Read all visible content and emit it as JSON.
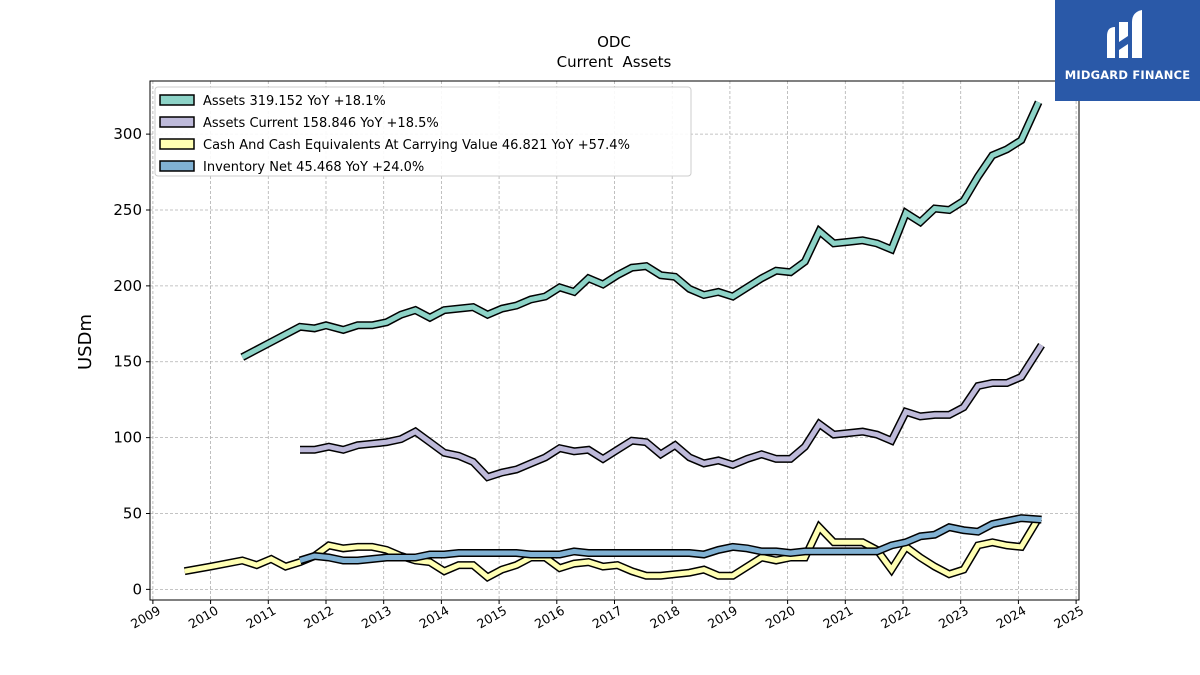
{
  "chart_data": {
    "type": "line",
    "title": "ODC",
    "subtitle": "Current  Assets",
    "ylabel": "USDm",
    "xlabel": "",
    "xlim": [
      2008.95,
      2025.05
    ],
    "ylim": [
      -7,
      335
    ],
    "x_ticks": [
      "2009",
      "2010",
      "2011",
      "2012",
      "2013",
      "2014",
      "2015",
      "2016",
      "2017",
      "2018",
      "2019",
      "2020",
      "2021",
      "2022",
      "2023",
      "2024",
      "2025"
    ],
    "y_ticks": [
      0,
      50,
      100,
      150,
      200,
      250,
      300
    ],
    "grid": true,
    "legend_position": "top-left",
    "series": [
      {
        "name": "Assets  319.152 YoY +18.1%",
        "color": "#8dd3c7",
        "points": [
          [
            2010.55,
            153
          ],
          [
            2011.0,
            162
          ],
          [
            2011.55,
            173
          ],
          [
            2011.8,
            172
          ],
          [
            2012.0,
            174
          ],
          [
            2012.3,
            171
          ],
          [
            2012.55,
            174
          ],
          [
            2012.8,
            174
          ],
          [
            2013.05,
            176
          ],
          [
            2013.3,
            181
          ],
          [
            2013.55,
            184
          ],
          [
            2013.8,
            179
          ],
          [
            2014.05,
            184
          ],
          [
            2014.3,
            185
          ],
          [
            2014.55,
            186
          ],
          [
            2014.8,
            181
          ],
          [
            2015.05,
            185
          ],
          [
            2015.3,
            187
          ],
          [
            2015.55,
            191
          ],
          [
            2015.8,
            193
          ],
          [
            2016.05,
            199
          ],
          [
            2016.3,
            196
          ],
          [
            2016.55,
            205
          ],
          [
            2016.8,
            201
          ],
          [
            2017.05,
            207
          ],
          [
            2017.3,
            212
          ],
          [
            2017.55,
            213
          ],
          [
            2017.8,
            207
          ],
          [
            2018.05,
            206
          ],
          [
            2018.3,
            198
          ],
          [
            2018.55,
            194
          ],
          [
            2018.8,
            196
          ],
          [
            2019.05,
            193
          ],
          [
            2019.3,
            199
          ],
          [
            2019.55,
            205
          ],
          [
            2019.8,
            210
          ],
          [
            2020.05,
            209
          ],
          [
            2020.3,
            216
          ],
          [
            2020.55,
            236
          ],
          [
            2020.8,
            228
          ],
          [
            2021.05,
            229
          ],
          [
            2021.3,
            230
          ],
          [
            2021.55,
            228
          ],
          [
            2021.8,
            224
          ],
          [
            2022.05,
            248
          ],
          [
            2022.3,
            242
          ],
          [
            2022.55,
            251
          ],
          [
            2022.8,
            250
          ],
          [
            2023.05,
            256
          ],
          [
            2023.3,
            272
          ],
          [
            2023.55,
            286
          ],
          [
            2023.8,
            290
          ],
          [
            2024.05,
            296
          ],
          [
            2024.35,
            321
          ]
        ]
      },
      {
        "name": "Assets Current  158.846 YoY +18.5%",
        "color": "#bebada",
        "points": [
          [
            2011.55,
            92
          ],
          [
            2011.8,
            92
          ],
          [
            2012.05,
            94
          ],
          [
            2012.3,
            92
          ],
          [
            2012.55,
            95
          ],
          [
            2012.8,
            96
          ],
          [
            2013.05,
            97
          ],
          [
            2013.3,
            99
          ],
          [
            2013.55,
            104
          ],
          [
            2013.8,
            97
          ],
          [
            2014.05,
            90
          ],
          [
            2014.3,
            88
          ],
          [
            2014.55,
            84
          ],
          [
            2014.8,
            74
          ],
          [
            2015.05,
            77
          ],
          [
            2015.3,
            79
          ],
          [
            2015.55,
            83
          ],
          [
            2015.8,
            87
          ],
          [
            2016.05,
            93
          ],
          [
            2016.3,
            91
          ],
          [
            2016.55,
            92
          ],
          [
            2016.8,
            86
          ],
          [
            2017.05,
            92
          ],
          [
            2017.3,
            98
          ],
          [
            2017.55,
            97
          ],
          [
            2017.8,
            89
          ],
          [
            2018.05,
            95
          ],
          [
            2018.3,
            87
          ],
          [
            2018.55,
            83
          ],
          [
            2018.8,
            85
          ],
          [
            2019.05,
            82
          ],
          [
            2019.3,
            86
          ],
          [
            2019.55,
            89
          ],
          [
            2019.8,
            86
          ],
          [
            2020.05,
            86
          ],
          [
            2020.3,
            94
          ],
          [
            2020.55,
            109
          ],
          [
            2020.8,
            102
          ],
          [
            2021.05,
            103
          ],
          [
            2021.3,
            104
          ],
          [
            2021.55,
            102
          ],
          [
            2021.8,
            98
          ],
          [
            2022.05,
            117
          ],
          [
            2022.3,
            114
          ],
          [
            2022.55,
            115
          ],
          [
            2022.8,
            115
          ],
          [
            2023.05,
            120
          ],
          [
            2023.3,
            134
          ],
          [
            2023.55,
            136
          ],
          [
            2023.8,
            136
          ],
          [
            2024.05,
            140
          ],
          [
            2024.4,
            161
          ]
        ]
      },
      {
        "name": "Cash And Cash Equivalents At Carrying Value  46.821 YoY +57.4%",
        "color": "#ffffb3",
        "points": [
          [
            2009.55,
            12
          ],
          [
            2010.0,
            15
          ],
          [
            2010.55,
            19
          ],
          [
            2010.8,
            16
          ],
          [
            2011.05,
            20
          ],
          [
            2011.3,
            15
          ],
          [
            2011.55,
            18
          ],
          [
            2011.8,
            22
          ],
          [
            2012.05,
            29
          ],
          [
            2012.3,
            27
          ],
          [
            2012.55,
            28
          ],
          [
            2012.8,
            28
          ],
          [
            2013.05,
            26
          ],
          [
            2013.3,
            22
          ],
          [
            2013.55,
            19
          ],
          [
            2013.8,
            18
          ],
          [
            2014.05,
            12
          ],
          [
            2014.3,
            16
          ],
          [
            2014.55,
            16
          ],
          [
            2014.8,
            8
          ],
          [
            2015.05,
            13
          ],
          [
            2015.3,
            16
          ],
          [
            2015.55,
            21
          ],
          [
            2015.8,
            21
          ],
          [
            2016.05,
            14
          ],
          [
            2016.3,
            17
          ],
          [
            2016.55,
            18
          ],
          [
            2016.8,
            15
          ],
          [
            2017.05,
            16
          ],
          [
            2017.3,
            12
          ],
          [
            2017.55,
            9
          ],
          [
            2017.8,
            9
          ],
          [
            2018.05,
            10
          ],
          [
            2018.3,
            11
          ],
          [
            2018.55,
            13
          ],
          [
            2018.8,
            9
          ],
          [
            2019.05,
            9
          ],
          [
            2019.3,
            15
          ],
          [
            2019.55,
            21
          ],
          [
            2019.8,
            19
          ],
          [
            2020.05,
            21
          ],
          [
            2020.3,
            21
          ],
          [
            2020.55,
            41
          ],
          [
            2020.8,
            31
          ],
          [
            2021.05,
            31
          ],
          [
            2021.3,
            31
          ],
          [
            2021.55,
            26
          ],
          [
            2021.8,
            13
          ],
          [
            2022.05,
            28
          ],
          [
            2022.3,
            21
          ],
          [
            2022.55,
            15
          ],
          [
            2022.8,
            10
          ],
          [
            2023.05,
            13
          ],
          [
            2023.3,
            29
          ],
          [
            2023.55,
            31
          ],
          [
            2023.8,
            29
          ],
          [
            2024.05,
            28
          ],
          [
            2024.35,
            47
          ]
        ]
      },
      {
        "name": "Inventory Net  45.468 YoY +24.0%",
        "color": "#80b1d3",
        "points": [
          [
            2011.55,
            19
          ],
          [
            2011.8,
            22
          ],
          [
            2012.05,
            21
          ],
          [
            2012.3,
            19
          ],
          [
            2012.55,
            19
          ],
          [
            2012.8,
            20
          ],
          [
            2013.05,
            21
          ],
          [
            2013.3,
            21
          ],
          [
            2013.55,
            21
          ],
          [
            2013.8,
            23
          ],
          [
            2014.05,
            23
          ],
          [
            2014.3,
            24
          ],
          [
            2014.55,
            24
          ],
          [
            2014.8,
            24
          ],
          [
            2015.05,
            24
          ],
          [
            2015.3,
            24
          ],
          [
            2015.55,
            23
          ],
          [
            2015.8,
            23
          ],
          [
            2016.05,
            23
          ],
          [
            2016.3,
            25
          ],
          [
            2016.55,
            24
          ],
          [
            2016.8,
            24
          ],
          [
            2017.05,
            24
          ],
          [
            2017.3,
            24
          ],
          [
            2017.55,
            24
          ],
          [
            2017.8,
            24
          ],
          [
            2018.05,
            24
          ],
          [
            2018.3,
            24
          ],
          [
            2018.55,
            23
          ],
          [
            2018.8,
            26
          ],
          [
            2019.05,
            28
          ],
          [
            2019.3,
            27
          ],
          [
            2019.55,
            25
          ],
          [
            2019.8,
            25
          ],
          [
            2020.05,
            24
          ],
          [
            2020.3,
            25
          ],
          [
            2020.55,
            25
          ],
          [
            2020.8,
            25
          ],
          [
            2021.05,
            25
          ],
          [
            2021.3,
            25
          ],
          [
            2021.55,
            25
          ],
          [
            2021.8,
            29
          ],
          [
            2022.05,
            31
          ],
          [
            2022.3,
            35
          ],
          [
            2022.55,
            36
          ],
          [
            2022.8,
            41
          ],
          [
            2023.05,
            39
          ],
          [
            2023.3,
            38
          ],
          [
            2023.55,
            43
          ],
          [
            2023.8,
            45
          ],
          [
            2024.05,
            47
          ],
          [
            2024.4,
            46
          ]
        ]
      }
    ]
  },
  "logo": {
    "brand": "MIDGARD FINANCE",
    "color": "#2a59a8"
  }
}
